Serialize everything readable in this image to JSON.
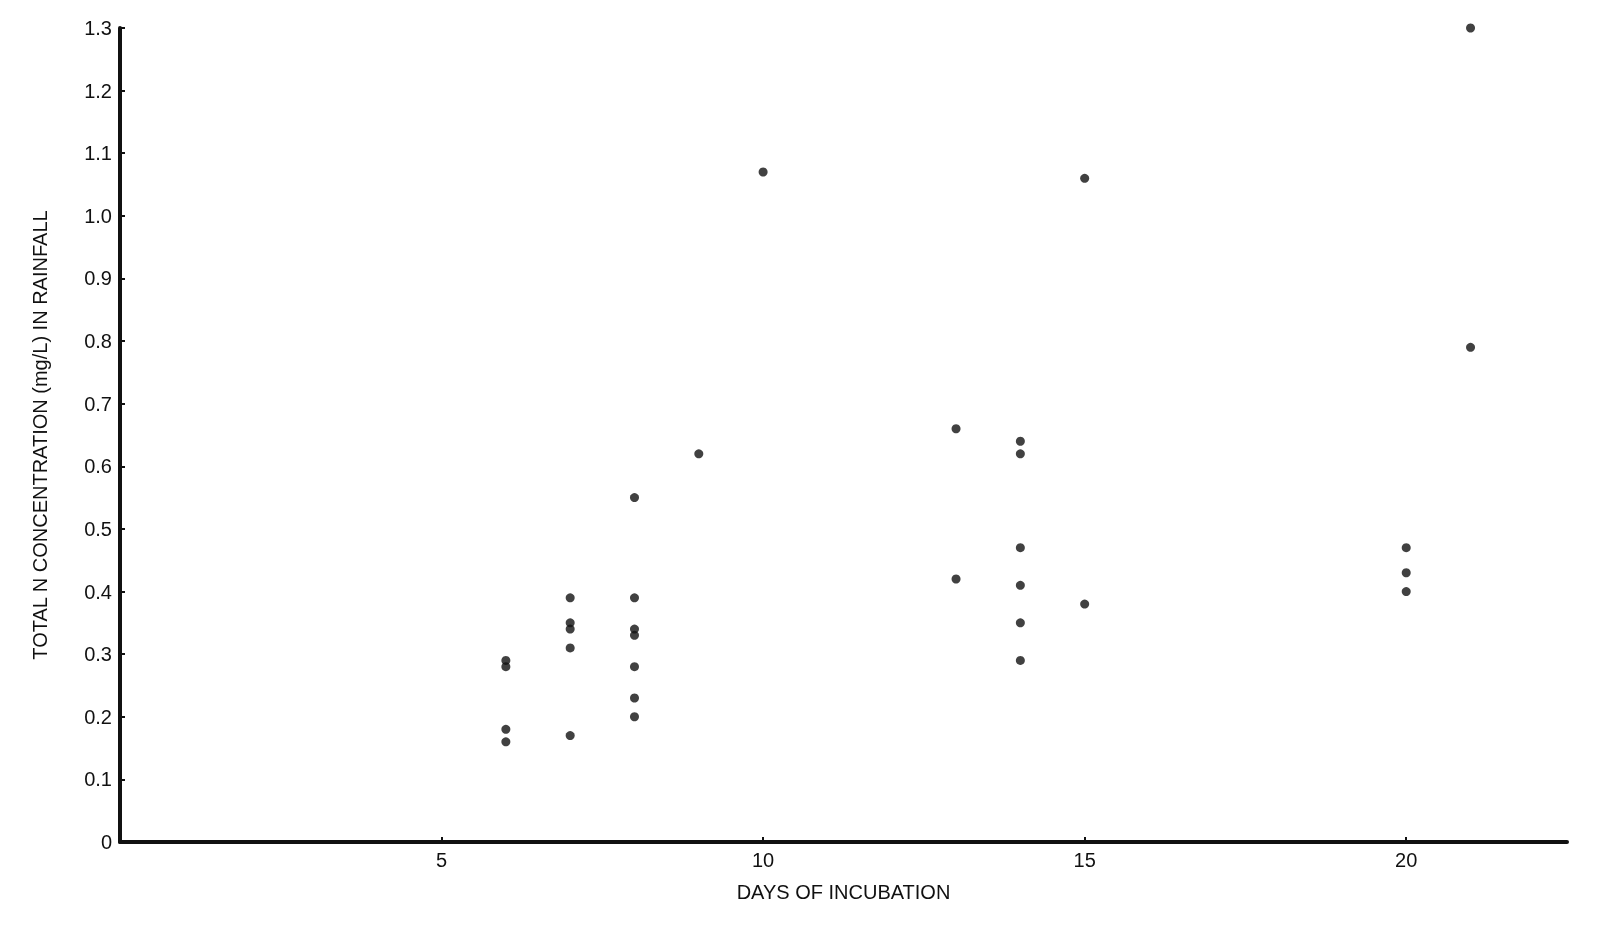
{
  "chart_data": {
    "type": "scatter",
    "xlabel": "DAYS OF INCUBATION",
    "ylabel": "TOTAL N CONCENTRATION (mg/L) IN RAINFALL",
    "x": [
      6,
      6,
      6,
      6,
      7,
      7,
      7,
      7,
      7,
      8,
      8,
      8,
      8,
      8,
      8,
      8,
      9,
      10,
      13,
      13,
      14,
      14,
      14,
      14,
      14,
      14,
      15,
      15,
      20,
      20,
      20,
      21,
      21
    ],
    "series": [
      {
        "color": "#111111",
        "values": [
          0.29,
          0.28,
          0.18,
          0.16,
          0.39,
          0.35,
          0.34,
          0.31,
          0.17,
          0.55,
          0.39,
          0.34,
          0.33,
          0.28,
          0.23,
          0.2,
          0.62,
          1.07,
          0.66,
          0.42,
          0.64,
          0.62,
          0.47,
          0.41,
          0.35,
          0.29,
          1.06,
          0.38,
          0.47,
          0.43,
          0.4,
          1.3,
          0.79
        ]
      }
    ],
    "xlim": [
      0,
      22.5
    ],
    "xticks": [
      5,
      10,
      15,
      20
    ],
    "ylim": [
      0,
      1.3
    ],
    "yticks": [
      0,
      0.1,
      0.2,
      0.3,
      0.4,
      0.5,
      0.6,
      0.7,
      0.8,
      0.9,
      {
        "value": 1,
        "label": "1.0"
      },
      1.1,
      1.2,
      1.3
    ],
    "grid": false,
    "marker": "circle"
  }
}
